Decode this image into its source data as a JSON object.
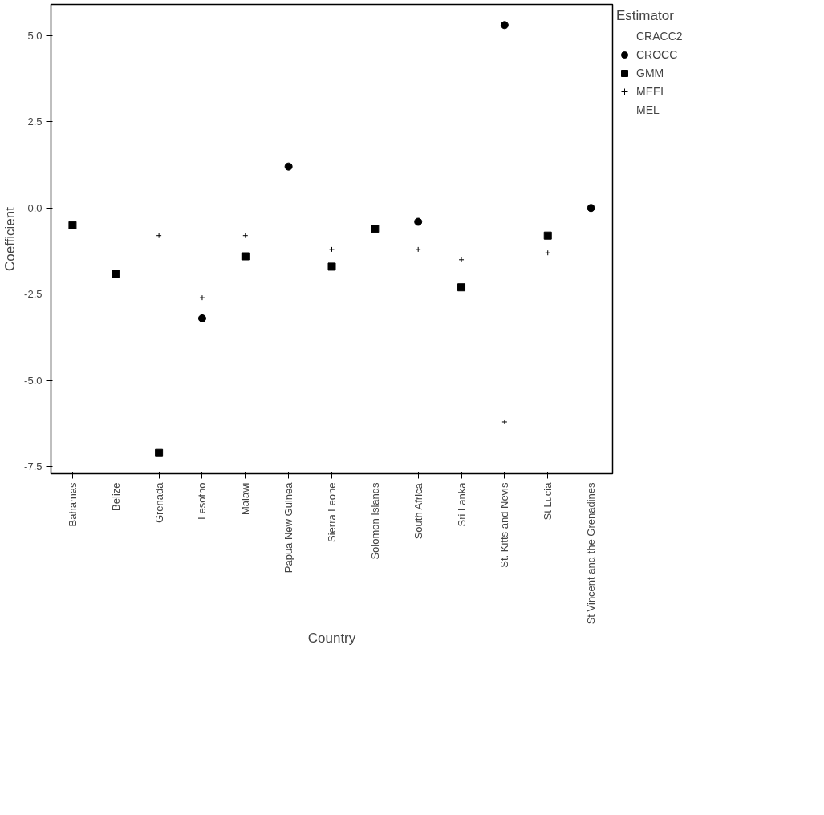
{
  "chart_data": {
    "type": "scatter",
    "xlabel": "Country",
    "ylabel": "Coefficient",
    "legend_title": "Estimator",
    "legend": "right",
    "grid": false,
    "categories": [
      "Bahamas",
      "Belize",
      "Grenada",
      "Lesotho",
      "Malawi",
      "Papua New Guinea",
      "Sierra Leone",
      "Solomon Islands",
      "South Africa",
      "Sri Lanka",
      "St. Kitts and Nevis",
      "St Lucia",
      "St Vincent and the Grenadines"
    ],
    "ylim": [
      -7.7,
      5.9
    ],
    "yticks": [
      {
        "value": 5,
        "label": "5.0"
      },
      {
        "value": 2.5,
        "label": "2.5"
      },
      {
        "value": 0,
        "label": "0.0"
      },
      {
        "value": -2.5,
        "label": "-2.5"
      },
      {
        "value": -5,
        "label": "-5.0"
      },
      {
        "value": -7.5,
        "label": "-7.5"
      }
    ],
    "series": [
      {
        "name": "CRACC2",
        "marker": "circle",
        "values": [
          null,
          null,
          null,
          null,
          null,
          null,
          null,
          null,
          null,
          null,
          null,
          null,
          null
        ]
      },
      {
        "name": "CROCC",
        "color": "#000000",
        "marker": "circle",
        "values": [
          null,
          null,
          null,
          -3.2,
          null,
          1.2,
          null,
          null,
          -0.4,
          null,
          5.3,
          null,
          0.0
        ]
      },
      {
        "name": "GMM",
        "color": "#000000",
        "marker": "square",
        "values": [
          -0.5,
          -1.9,
          -7.1,
          null,
          -1.4,
          null,
          -1.7,
          -0.6,
          null,
          -2.3,
          null,
          -0.8,
          null
        ]
      },
      {
        "name": "MEEL",
        "color": "#000000",
        "marker": "cross",
        "values": [
          null,
          null,
          -0.8,
          -2.6,
          -0.8,
          null,
          -1.2,
          null,
          -1.2,
          -1.5,
          -6.2,
          -1.3,
          null
        ]
      },
      {
        "name": "MEL",
        "marker": "circle",
        "values": [
          null,
          null,
          null,
          null,
          null,
          null,
          null,
          null,
          null,
          null,
          null,
          null,
          null
        ]
      }
    ]
  }
}
